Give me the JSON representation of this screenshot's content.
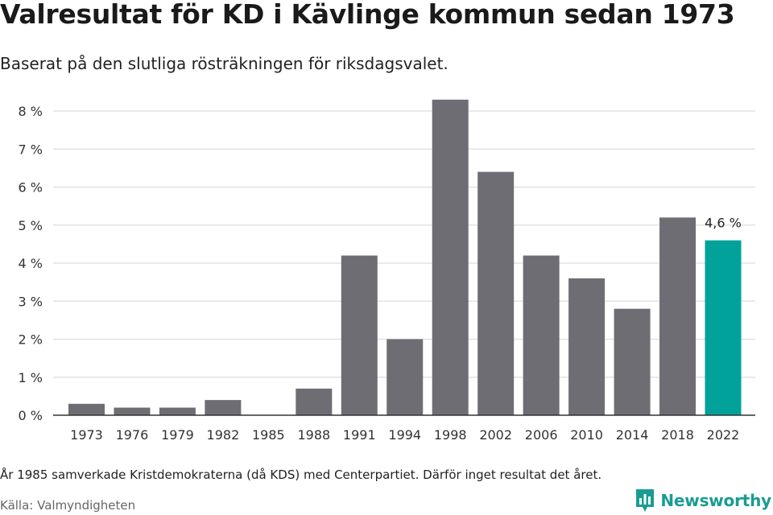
{
  "header": {
    "title": "Valresultat för KD i Kävlinge kommun sedan 1973",
    "subtitle": "Baserat på den slutliga rösträkningen för riksdagsvalet."
  },
  "footer": {
    "note": "År 1985 samverkade Kristdemokraterna (då KDS) med Centerpartiet. Därför inget resultat det året.",
    "source": "Källa: Valmyndigheten",
    "brand": "Newsworthy",
    "brand_icon": "newsworthy-logo-icon"
  },
  "colors": {
    "bar": "#6e6d73",
    "highlight": "#00a29a",
    "grid": "#dddddd",
    "axis": "#333333",
    "brand": "#1a9c92"
  },
  "chart_data": {
    "type": "bar",
    "title": "Valresultat för KD i Kävlinge kommun sedan 1973",
    "subtitle": "Baserat på den slutliga rösträkningen för riksdagsvalet.",
    "xlabel": "",
    "ylabel": "",
    "categories": [
      "1973",
      "1976",
      "1979",
      "1982",
      "1985",
      "1988",
      "1991",
      "1994",
      "1998",
      "2002",
      "2006",
      "2010",
      "2014",
      "2018",
      "2022"
    ],
    "values": [
      0.3,
      0.2,
      0.2,
      0.4,
      null,
      0.7,
      4.2,
      2.0,
      8.3,
      6.4,
      4.2,
      3.6,
      2.8,
      5.2,
      4.6
    ],
    "highlight_index": 14,
    "annotations": [
      {
        "category": "2022",
        "text": "4,6 %"
      }
    ],
    "ylim": [
      0,
      8
    ],
    "yticks": [
      0,
      1,
      2,
      3,
      4,
      5,
      6,
      7,
      8
    ],
    "ytick_labels": [
      "0 %",
      "1 %",
      "2 %",
      "3 %",
      "4 %",
      "5 %",
      "6 %",
      "7 %",
      "8 %"
    ],
    "grid": true,
    "legend": "none"
  }
}
